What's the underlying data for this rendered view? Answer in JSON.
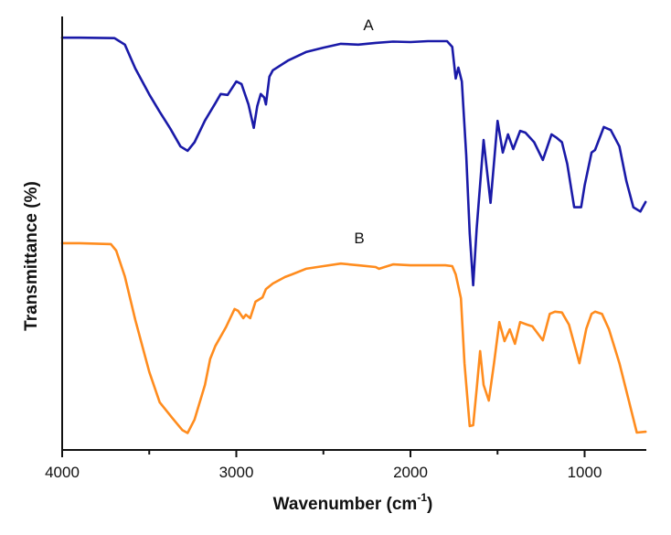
{
  "chart_data": {
    "type": "line",
    "title": "",
    "xlabel": "Wavenumber (cm",
    "xlabel_sup": "-1",
    "xlabel_close": ")",
    "ylabel": "Transmittance (%)",
    "xlim": [
      4000,
      650
    ],
    "x_reversed": true,
    "ylim": [
      0,
      100
    ],
    "y_ticks_shown": false,
    "grid": false,
    "legend": "none (inline labels A and B)",
    "x_ticks": [
      4000,
      3000,
      2000,
      1000
    ],
    "x_tick_labels": [
      "4000",
      "3000",
      "2000",
      "1000"
    ],
    "x_minor_ticks": [
      3500,
      2500,
      1500
    ],
    "annotations": [
      {
        "text": "A",
        "x": 2350,
        "y": 98
      },
      {
        "text": "B",
        "x": 2320,
        "y": 49
      }
    ],
    "series": [
      {
        "name": "A",
        "color": "#1a1aa8",
        "points": [
          [
            4000,
            95.1
          ],
          [
            3900,
            95.1
          ],
          [
            3700,
            95.0
          ],
          [
            3640,
            93.5
          ],
          [
            3580,
            88.0
          ],
          [
            3500,
            82.0
          ],
          [
            3440,
            78.0
          ],
          [
            3380,
            74.2
          ],
          [
            3320,
            70.0
          ],
          [
            3280,
            69.0
          ],
          [
            3240,
            71.0
          ],
          [
            3180,
            76.0
          ],
          [
            3120,
            80.0
          ],
          [
            3090,
            82.1
          ],
          [
            3050,
            81.9
          ],
          [
            3000,
            85.0
          ],
          [
            2970,
            84.4
          ],
          [
            2930,
            79.7
          ],
          [
            2900,
            74.3
          ],
          [
            2880,
            79.3
          ],
          [
            2860,
            82.1
          ],
          [
            2840,
            81.3
          ],
          [
            2830,
            79.7
          ],
          [
            2810,
            86.1
          ],
          [
            2790,
            87.6
          ],
          [
            2700,
            89.9
          ],
          [
            2600,
            91.8
          ],
          [
            2500,
            92.8
          ],
          [
            2400,
            93.7
          ],
          [
            2300,
            93.5
          ],
          [
            2200,
            93.9
          ],
          [
            2100,
            94.2
          ],
          [
            2000,
            94.1
          ],
          [
            1900,
            94.3
          ],
          [
            1790,
            94.3
          ],
          [
            1760,
            93.0
          ],
          [
            1740,
            85.7
          ],
          [
            1725,
            88.2
          ],
          [
            1705,
            85.0
          ],
          [
            1680,
            68.0
          ],
          [
            1660,
            50.0
          ],
          [
            1640,
            38.0
          ],
          [
            1620,
            51.0
          ],
          [
            1580,
            71.5
          ],
          [
            1540,
            57.0
          ],
          [
            1500,
            75.9
          ],
          [
            1470,
            68.6
          ],
          [
            1440,
            72.8
          ],
          [
            1410,
            69.4
          ],
          [
            1370,
            73.6
          ],
          [
            1340,
            73.2
          ],
          [
            1290,
            71.0
          ],
          [
            1240,
            66.9
          ],
          [
            1190,
            72.8
          ],
          [
            1160,
            72.0
          ],
          [
            1130,
            71.0
          ],
          [
            1100,
            66.0
          ],
          [
            1060,
            56.0
          ],
          [
            1020,
            56.0
          ],
          [
            1000,
            61.0
          ],
          [
            960,
            68.6
          ],
          [
            940,
            69.2
          ],
          [
            890,
            74.5
          ],
          [
            850,
            73.8
          ],
          [
            800,
            70.0
          ],
          [
            760,
            62.0
          ],
          [
            720,
            56.0
          ],
          [
            680,
            55.0
          ],
          [
            650,
            57.2
          ]
        ]
      },
      {
        "name": "B",
        "color": "#ff8c1e",
        "points": [
          [
            4000,
            47.7
          ],
          [
            3900,
            47.7
          ],
          [
            3720,
            47.5
          ],
          [
            3690,
            46.0
          ],
          [
            3640,
            40.0
          ],
          [
            3580,
            30.0
          ],
          [
            3500,
            18.0
          ],
          [
            3440,
            11.0
          ],
          [
            3360,
            7.0
          ],
          [
            3310,
            4.6
          ],
          [
            3280,
            3.9
          ],
          [
            3240,
            7.0
          ],
          [
            3180,
            15.0
          ],
          [
            3150,
            21.0
          ],
          [
            3120,
            24.0
          ],
          [
            3060,
            28.3
          ],
          [
            3010,
            32.5
          ],
          [
            2990,
            32.1
          ],
          [
            2960,
            30.4
          ],
          [
            2945,
            31.2
          ],
          [
            2920,
            30.4
          ],
          [
            2890,
            34.2
          ],
          [
            2865,
            34.8
          ],
          [
            2850,
            35.2
          ],
          [
            2830,
            37.1
          ],
          [
            2790,
            38.4
          ],
          [
            2720,
            39.9
          ],
          [
            2680,
            40.5
          ],
          [
            2600,
            41.8
          ],
          [
            2500,
            42.4
          ],
          [
            2400,
            43.0
          ],
          [
            2300,
            42.6
          ],
          [
            2200,
            42.2
          ],
          [
            2180,
            41.8
          ],
          [
            2100,
            42.8
          ],
          [
            2000,
            42.6
          ],
          [
            1900,
            42.6
          ],
          [
            1800,
            42.6
          ],
          [
            1760,
            42.4
          ],
          [
            1740,
            40.5
          ],
          [
            1710,
            35.0
          ],
          [
            1690,
            20.0
          ],
          [
            1660,
            5.5
          ],
          [
            1640,
            5.7
          ],
          [
            1620,
            14.0
          ],
          [
            1600,
            22.8
          ],
          [
            1580,
            15.0
          ],
          [
            1550,
            11.4
          ],
          [
            1520,
            20.0
          ],
          [
            1490,
            29.5
          ],
          [
            1460,
            25.1
          ],
          [
            1430,
            27.8
          ],
          [
            1400,
            24.5
          ],
          [
            1370,
            29.5
          ],
          [
            1330,
            28.9
          ],
          [
            1300,
            28.5
          ],
          [
            1240,
            25.3
          ],
          [
            1200,
            31.4
          ],
          [
            1170,
            31.9
          ],
          [
            1130,
            31.7
          ],
          [
            1090,
            28.9
          ],
          [
            1050,
            23.0
          ],
          [
            1030,
            20.0
          ],
          [
            990,
            28.0
          ],
          [
            960,
            31.4
          ],
          [
            940,
            31.9
          ],
          [
            900,
            31.4
          ],
          [
            860,
            27.8
          ],
          [
            800,
            20.0
          ],
          [
            750,
            12.0
          ],
          [
            700,
            4.0
          ],
          [
            650,
            4.2
          ]
        ]
      }
    ]
  }
}
